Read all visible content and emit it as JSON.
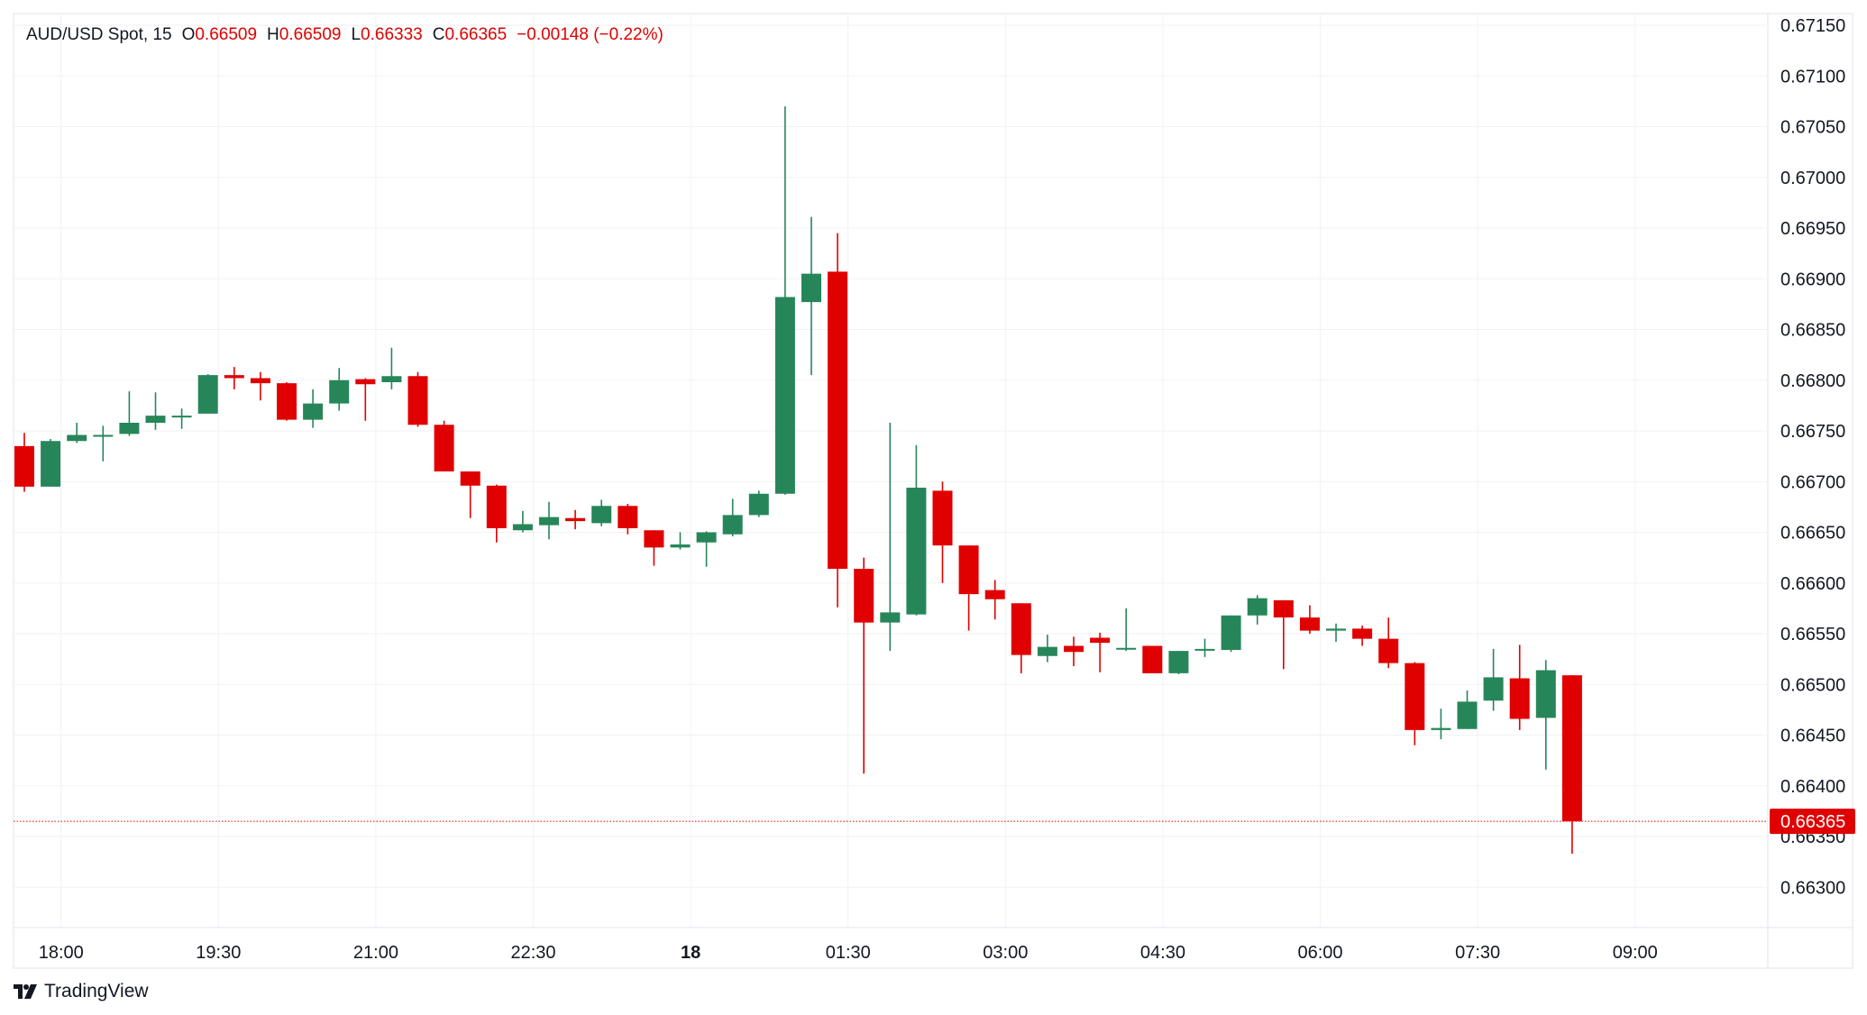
{
  "legend": {
    "symbol": "AUD/USD Spot, 15",
    "open_label": "O",
    "open": "0.66509",
    "high_label": "H",
    "high": "0.66509",
    "low_label": "L",
    "low": "0.66333",
    "close_label": "C",
    "close": "0.66365",
    "change": "−0.00148 (−0.22%)"
  },
  "brand": {
    "name": "TradingView",
    "icon": "tradingview-logo-icon"
  },
  "colors": {
    "up": "#26865a",
    "down": "#e00000",
    "grid": "#f0f2f5",
    "text": "#131722",
    "price_line": "#e00000"
  },
  "chart_data": {
    "type": "candlestick",
    "interval_minutes": 15,
    "y_ticks": [
      "0.67150",
      "0.67100",
      "0.67050",
      "0.67000",
      "0.66950",
      "0.66900",
      "0.66850",
      "0.66800",
      "0.66750",
      "0.66700",
      "0.66650",
      "0.66600",
      "0.66550",
      "0.66500",
      "0.66450",
      "0.66400",
      "0.66350",
      "0.66300"
    ],
    "ylim": [
      0.6626,
      0.6716
    ],
    "x_ticks": [
      {
        "label": "18:00",
        "bar": 1.4,
        "bold": false
      },
      {
        "label": "19:30",
        "bar": 7.4,
        "bold": false
      },
      {
        "label": "21:00",
        "bar": 13.4,
        "bold": false
      },
      {
        "label": "22:30",
        "bar": 19.4,
        "bold": false
      },
      {
        "label": "18",
        "bar": 25.4,
        "bold": true
      },
      {
        "label": "01:30",
        "bar": 31.4,
        "bold": false
      },
      {
        "label": "03:00",
        "bar": 37.4,
        "bold": false
      },
      {
        "label": "04:30",
        "bar": 43.4,
        "bold": false
      },
      {
        "label": "06:00",
        "bar": 49.4,
        "bold": false
      },
      {
        "label": "07:30",
        "bar": 55.4,
        "bold": false
      },
      {
        "label": "09:00",
        "bar": 61.4,
        "bold": false
      }
    ],
    "last_price": "0.66365",
    "candles": [
      {
        "o": 0.66735,
        "h": 0.66748,
        "l": 0.6669,
        "c": 0.66695
      },
      {
        "o": 0.66695,
        "h": 0.66742,
        "l": 0.66695,
        "c": 0.6674
      },
      {
        "o": 0.6674,
        "h": 0.66758,
        "l": 0.66738,
        "c": 0.66746
      },
      {
        "o": 0.66746,
        "h": 0.66755,
        "l": 0.6672,
        "c": 0.66746
      },
      {
        "o": 0.66747,
        "h": 0.66789,
        "l": 0.66745,
        "c": 0.66758
      },
      {
        "o": 0.66758,
        "h": 0.66788,
        "l": 0.66751,
        "c": 0.66765
      },
      {
        "o": 0.66765,
        "h": 0.66772,
        "l": 0.66752,
        "c": 0.66765
      },
      {
        "o": 0.66767,
        "h": 0.66806,
        "l": 0.66767,
        "c": 0.66805
      },
      {
        "o": 0.66805,
        "h": 0.66813,
        "l": 0.66791,
        "c": 0.66802
      },
      {
        "o": 0.66802,
        "h": 0.66808,
        "l": 0.6678,
        "c": 0.66797
      },
      {
        "o": 0.66797,
        "h": 0.66798,
        "l": 0.6676,
        "c": 0.66761
      },
      {
        "o": 0.66761,
        "h": 0.66791,
        "l": 0.66753,
        "c": 0.66777
      },
      {
        "o": 0.66777,
        "h": 0.66812,
        "l": 0.6677,
        "c": 0.668
      },
      {
        "o": 0.66801,
        "h": 0.66802,
        "l": 0.6676,
        "c": 0.66796
      },
      {
        "o": 0.66798,
        "h": 0.66832,
        "l": 0.66791,
        "c": 0.66804
      },
      {
        "o": 0.66804,
        "h": 0.66808,
        "l": 0.66754,
        "c": 0.66756
      },
      {
        "o": 0.66756,
        "h": 0.6676,
        "l": 0.6671,
        "c": 0.6671
      },
      {
        "o": 0.6671,
        "h": 0.6671,
        "l": 0.66664,
        "c": 0.66696
      },
      {
        "o": 0.66696,
        "h": 0.66697,
        "l": 0.6664,
        "c": 0.66654
      },
      {
        "o": 0.66652,
        "h": 0.66671,
        "l": 0.6665,
        "c": 0.66658
      },
      {
        "o": 0.66657,
        "h": 0.6668,
        "l": 0.66643,
        "c": 0.66665
      },
      {
        "o": 0.66664,
        "h": 0.66672,
        "l": 0.66653,
        "c": 0.66661
      },
      {
        "o": 0.66659,
        "h": 0.66682,
        "l": 0.66656,
        "c": 0.66676
      },
      {
        "o": 0.66676,
        "h": 0.66678,
        "l": 0.66648,
        "c": 0.66654
      },
      {
        "o": 0.66652,
        "h": 0.66652,
        "l": 0.66617,
        "c": 0.66635
      },
      {
        "o": 0.66635,
        "h": 0.6665,
        "l": 0.66633,
        "c": 0.66638
      },
      {
        "o": 0.6664,
        "h": 0.66651,
        "l": 0.66616,
        "c": 0.6665
      },
      {
        "o": 0.66648,
        "h": 0.66683,
        "l": 0.66646,
        "c": 0.66667
      },
      {
        "o": 0.66667,
        "h": 0.66691,
        "l": 0.66665,
        "c": 0.66688
      },
      {
        "o": 0.66688,
        "h": 0.6707,
        "l": 0.66687,
        "c": 0.66882
      },
      {
        "o": 0.66877,
        "h": 0.66961,
        "l": 0.66805,
        "c": 0.66905
      },
      {
        "o": 0.66907,
        "h": 0.66945,
        "l": 0.66576,
        "c": 0.66614
      },
      {
        "o": 0.66614,
        "h": 0.66625,
        "l": 0.66412,
        "c": 0.66561
      },
      {
        "o": 0.66561,
        "h": 0.66758,
        "l": 0.66533,
        "c": 0.66571
      },
      {
        "o": 0.66569,
        "h": 0.66736,
        "l": 0.66568,
        "c": 0.66694
      },
      {
        "o": 0.66691,
        "h": 0.667,
        "l": 0.666,
        "c": 0.66637
      },
      {
        "o": 0.66637,
        "h": 0.66637,
        "l": 0.66553,
        "c": 0.66589
      },
      {
        "o": 0.66593,
        "h": 0.66603,
        "l": 0.66564,
        "c": 0.66584
      },
      {
        "o": 0.6658,
        "h": 0.6658,
        "l": 0.66511,
        "c": 0.66529
      },
      {
        "o": 0.66528,
        "h": 0.66549,
        "l": 0.66522,
        "c": 0.66537
      },
      {
        "o": 0.66538,
        "h": 0.66547,
        "l": 0.66518,
        "c": 0.66532
      },
      {
        "o": 0.66546,
        "h": 0.66551,
        "l": 0.66512,
        "c": 0.66541
      },
      {
        "o": 0.66536,
        "h": 0.66575,
        "l": 0.66533,
        "c": 0.66536
      },
      {
        "o": 0.66538,
        "h": 0.66538,
        "l": 0.66511,
        "c": 0.66511
      },
      {
        "o": 0.66511,
        "h": 0.66533,
        "l": 0.6651,
        "c": 0.66533
      },
      {
        "o": 0.66535,
        "h": 0.66545,
        "l": 0.66527,
        "c": 0.66535
      },
      {
        "o": 0.66534,
        "h": 0.66568,
        "l": 0.66532,
        "c": 0.66568
      },
      {
        "o": 0.66568,
        "h": 0.66588,
        "l": 0.66559,
        "c": 0.66585
      },
      {
        "o": 0.66583,
        "h": 0.66583,
        "l": 0.66515,
        "c": 0.66566
      },
      {
        "o": 0.66566,
        "h": 0.66578,
        "l": 0.6655,
        "c": 0.66553
      },
      {
        "o": 0.66553,
        "h": 0.6656,
        "l": 0.66542,
        "c": 0.66555
      },
      {
        "o": 0.66555,
        "h": 0.66558,
        "l": 0.66538,
        "c": 0.66545
      },
      {
        "o": 0.66545,
        "h": 0.66566,
        "l": 0.66516,
        "c": 0.66521
      },
      {
        "o": 0.66521,
        "h": 0.66522,
        "l": 0.6644,
        "c": 0.66455
      },
      {
        "o": 0.66455,
        "h": 0.66476,
        "l": 0.66446,
        "c": 0.66457
      },
      {
        "o": 0.66456,
        "h": 0.66494,
        "l": 0.66456,
        "c": 0.66483
      },
      {
        "o": 0.66484,
        "h": 0.66535,
        "l": 0.66474,
        "c": 0.66507
      },
      {
        "o": 0.66506,
        "h": 0.66539,
        "l": 0.66455,
        "c": 0.66466
      },
      {
        "o": 0.66467,
        "h": 0.66524,
        "l": 0.66416,
        "c": 0.66514
      },
      {
        "o": 0.66509,
        "h": 0.66509,
        "l": 0.66333,
        "c": 0.66365
      }
    ]
  }
}
